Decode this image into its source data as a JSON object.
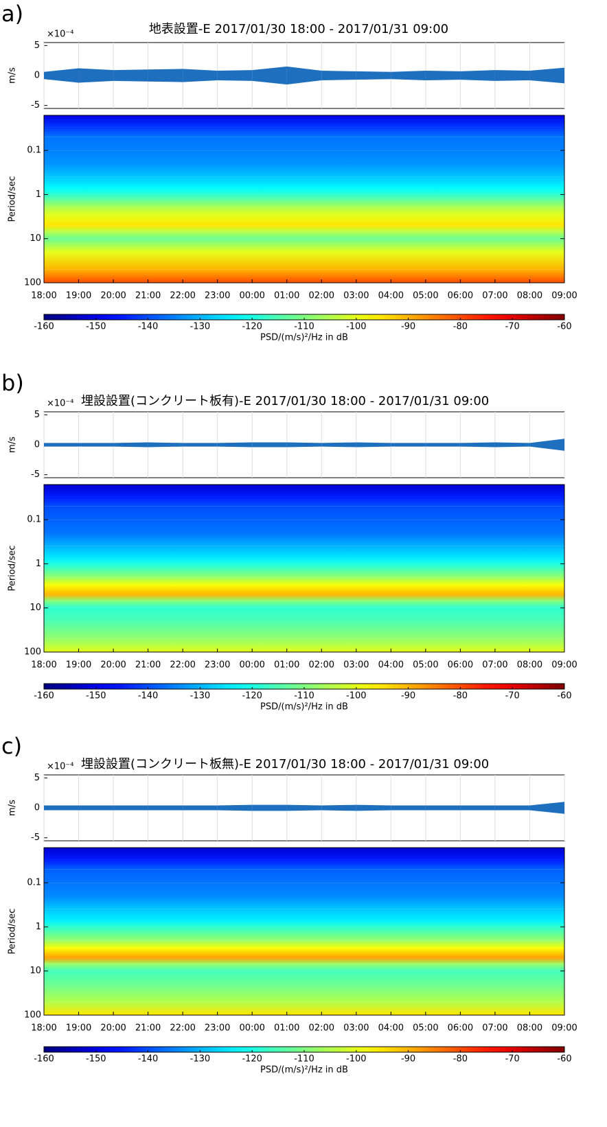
{
  "chart_data": [
    {
      "type": "spectrogram",
      "panel_label": "a)",
      "title": "地表設置-E 2017/01/30 18:00 - 2017/01/31 09:00",
      "exponent_label": "×10⁻⁴",
      "x": [
        "18:00",
        "19:00",
        "20:00",
        "21:00",
        "22:00",
        "23:00",
        "00:00",
        "01:00",
        "02:00",
        "03:00",
        "04:00",
        "05:00",
        "06:00",
        "07:00",
        "08:00",
        "09:00"
      ],
      "wave_ylabel": "m/s",
      "wave_ylim": [
        -5.5,
        5.5
      ],
      "wave_yticks": [
        -5,
        0,
        5
      ],
      "wave_color": "#1f6fbf",
      "amplitude": [
        0.6,
        1.2,
        0.9,
        1.0,
        1.1,
        0.8,
        0.9,
        1.5,
        0.8,
        0.7,
        0.6,
        0.8,
        0.7,
        0.9,
        0.8,
        1.3
      ],
      "ylabel": "Period/sec",
      "ylog": true,
      "yreverse": true,
      "ylim": [
        0.016,
        100
      ],
      "yticks": [
        0.1,
        1,
        10,
        100
      ],
      "periods": [
        0.016,
        0.03,
        0.05,
        0.1,
        0.2,
        0.4,
        0.7,
        1,
        2,
        3,
        5,
        7,
        10,
        20,
        50,
        100
      ],
      "psd": [
        -150,
        -142,
        -136,
        -135,
        -133,
        -128,
        -123,
        -118,
        -105,
        -100,
        -95,
        -105,
        -112,
        -100,
        -90,
        -80
      ],
      "colormap": "jet",
      "clim": [
        -160,
        -60
      ],
      "cticks": [
        -160,
        -150,
        -140,
        -130,
        -120,
        -110,
        -100,
        -90,
        -80,
        -70,
        -60
      ],
      "clabel": "PSD/(m/s)²/Hz in dB",
      "grid": true
    },
    {
      "type": "spectrogram",
      "panel_label": "b)",
      "title": "埋設設置(コンクリート板有)-E 2017/01/30 18:00 - 2017/01/31 09:00",
      "exponent_label": "×10⁻⁴",
      "x": [
        "18:00",
        "19:00",
        "20:00",
        "21:00",
        "22:00",
        "23:00",
        "00:00",
        "01:00",
        "02:00",
        "03:00",
        "04:00",
        "05:00",
        "06:00",
        "07:00",
        "08:00",
        "09:00"
      ],
      "wave_ylabel": "m/s",
      "wave_ylim": [
        -5.5,
        5.5
      ],
      "wave_yticks": [
        -5,
        0,
        5
      ],
      "wave_color": "#1f6fbf",
      "amplitude": [
        0.3,
        0.3,
        0.3,
        0.4,
        0.3,
        0.3,
        0.4,
        0.4,
        0.3,
        0.4,
        0.3,
        0.3,
        0.3,
        0.4,
        0.3,
        1.0
      ],
      "ylabel": "Period/sec",
      "ylog": true,
      "yreverse": true,
      "ylim": [
        0.016,
        100
      ],
      "yticks": [
        0.1,
        1,
        10,
        100
      ],
      "periods": [
        0.016,
        0.03,
        0.05,
        0.1,
        0.2,
        0.4,
        0.7,
        1,
        2,
        3,
        5,
        7,
        10,
        20,
        50,
        100
      ],
      "psd": [
        -152,
        -145,
        -140,
        -138,
        -136,
        -130,
        -125,
        -120,
        -108,
        -98,
        -90,
        -110,
        -118,
        -115,
        -108,
        -100
      ],
      "colormap": "jet",
      "clim": [
        -160,
        -60
      ],
      "cticks": [
        -160,
        -150,
        -140,
        -130,
        -120,
        -110,
        -100,
        -90,
        -80,
        -70,
        -60
      ],
      "clabel": "PSD/(m/s)²/Hz in dB",
      "grid": true
    },
    {
      "type": "spectrogram",
      "panel_label": "c)",
      "title": "埋設設置(コンクリート板無)-E 2017/01/30 18:00 - 2017/01/31 09:00",
      "exponent_label": "×10⁻⁴",
      "x": [
        "18:00",
        "19:00",
        "20:00",
        "21:00",
        "22:00",
        "23:00",
        "00:00",
        "01:00",
        "02:00",
        "03:00",
        "04:00",
        "05:00",
        "06:00",
        "07:00",
        "08:00",
        "09:00"
      ],
      "wave_ylabel": "m/s",
      "wave_ylim": [
        -5.5,
        5.5
      ],
      "wave_yticks": [
        -5,
        0,
        5
      ],
      "wave_color": "#1f6fbf",
      "amplitude": [
        0.4,
        0.4,
        0.4,
        0.4,
        0.4,
        0.4,
        0.5,
        0.5,
        0.4,
        0.5,
        0.4,
        0.4,
        0.4,
        0.4,
        0.4,
        1.0
      ],
      "ylabel": "Period/sec",
      "ylog": true,
      "yreverse": true,
      "ylim": [
        0.016,
        100
      ],
      "yticks": [
        0.1,
        1,
        10,
        100
      ],
      "periods": [
        0.016,
        0.03,
        0.05,
        0.1,
        0.2,
        0.4,
        0.7,
        1,
        2,
        3,
        5,
        7,
        10,
        20,
        50,
        100
      ],
      "psd": [
        -152,
        -145,
        -138,
        -136,
        -134,
        -128,
        -124,
        -118,
        -108,
        -98,
        -88,
        -108,
        -116,
        -112,
        -105,
        -95
      ],
      "colormap": "jet",
      "clim": [
        -160,
        -60
      ],
      "cticks": [
        -160,
        -150,
        -140,
        -130,
        -120,
        -110,
        -100,
        -90,
        -80,
        -70,
        -60
      ],
      "clabel": "PSD/(m/s)²/Hz in dB",
      "grid": true
    }
  ]
}
